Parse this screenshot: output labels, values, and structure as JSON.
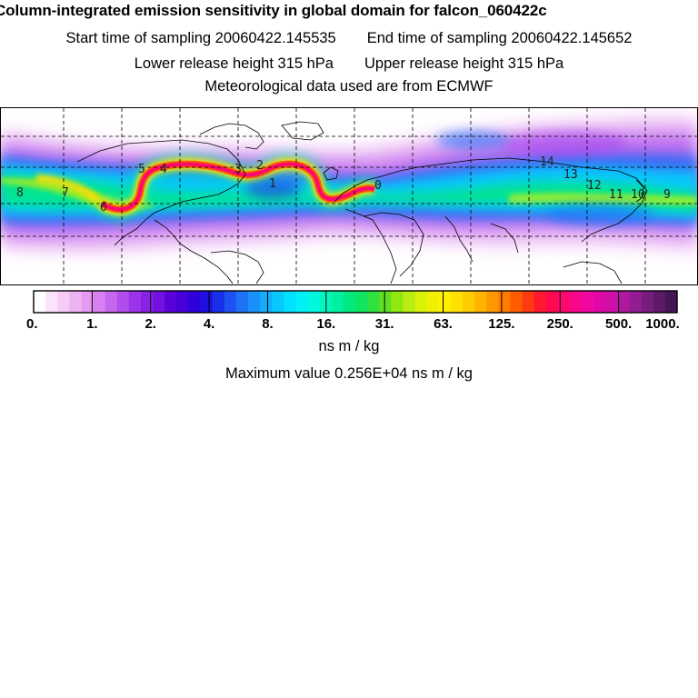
{
  "header": {
    "title": "Column-integrated emission sensitivity in global domain for falcon_060422c",
    "start_label": "Start time of sampling 20060422.145535",
    "end_label": "End time of sampling 20060422.145652",
    "lower_label": "Lower release height  315 hPa",
    "upper_label": "Upper release height  315 hPa",
    "met_label": "Meteorological data used are from ECMWF"
  },
  "map": {
    "day_markers": [
      "8",
      "7",
      "6",
      "5",
      "4",
      "3",
      "2",
      "1",
      "0",
      "14",
      "13",
      "12",
      "11",
      "10",
      "9"
    ],
    "grid": true,
    "projection": "lat-lon global"
  },
  "colorbar": {
    "tick_labels": [
      "0.",
      "1.",
      "2.",
      "4.",
      "8.",
      "16.",
      "31.",
      "63.",
      "125.",
      "250.",
      "500.",
      "1000."
    ],
    "colors": [
      "#ffffff",
      "#fbe3fb",
      "#f6ccf6",
      "#eeb3f2",
      "#e59af0",
      "#d880f0",
      "#c666ee",
      "#b24cec",
      "#9c33ea",
      "#8822e6",
      "#7211e0",
      "#5a00d8",
      "#4400d8",
      "#3000dc",
      "#1f10e2",
      "#1830ea",
      "#1e52f0",
      "#1e72f6",
      "#1a90fa",
      "#12aefc",
      "#08c8fe",
      "#00e0ff",
      "#00f0f8",
      "#00f8e0",
      "#00f8c0",
      "#00f0a0",
      "#00ea80",
      "#10e460",
      "#30e040",
      "#60e020",
      "#90e810",
      "#b8ee10",
      "#d8f208",
      "#f0f000",
      "#fff000",
      "#ffe000",
      "#ffcc00",
      "#ffb400",
      "#ff9800",
      "#ff7c00",
      "#ff5c00",
      "#ff3a10",
      "#ff1830",
      "#ff0a50",
      "#ff0870",
      "#f8088c",
      "#f008a0",
      "#e008a8",
      "#cc10a8",
      "#b018a0",
      "#941c92",
      "#781c7e",
      "#5c1a68",
      "#441656"
    ],
    "units": "ns m / kg",
    "max_label": "Maximum value  0.256E+04 ns m / kg"
  }
}
